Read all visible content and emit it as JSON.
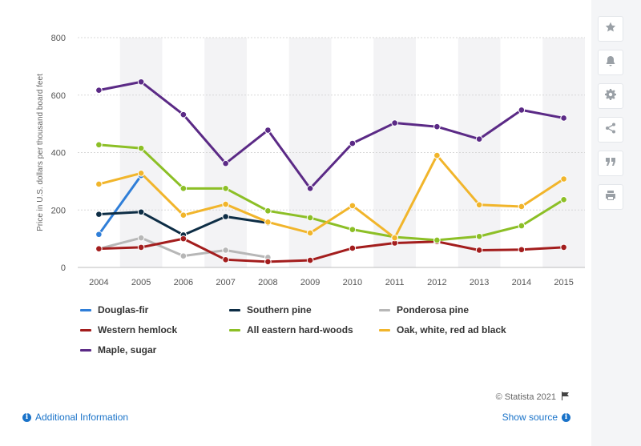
{
  "chart_data": {
    "type": "line",
    "categories": [
      "2004",
      "2005",
      "2006",
      "2007",
      "2008",
      "2009",
      "2010",
      "2011",
      "2012",
      "2013",
      "2014",
      "2015"
    ],
    "title": "",
    "xlabel": "",
    "ylabel": "Price in U.S. dollars per thousand board feet",
    "ylim": [
      0,
      800
    ],
    "yticks": [
      "0",
      "200",
      "400",
      "600",
      "800"
    ],
    "grid": true,
    "legend_position": "bottom",
    "series": [
      {
        "name": "Douglas-fir",
        "color": "#2f7ed8",
        "values": [
          115,
          320,
          null,
          null,
          null,
          null,
          null,
          null,
          null,
          null,
          null,
          null
        ]
      },
      {
        "name": "Southern pine",
        "color": "#0d2d45",
        "values": [
          185,
          193,
          113,
          177,
          155,
          null,
          null,
          null,
          null,
          null,
          null,
          null
        ]
      },
      {
        "name": "Ponderosa pine",
        "color": "#b7b7b7",
        "values": [
          65,
          103,
          40,
          60,
          35,
          null,
          null,
          null,
          null,
          null,
          null,
          null
        ]
      },
      {
        "name": "Western hemlock",
        "color": "#a31d1d",
        "values": [
          65,
          70,
          100,
          27,
          20,
          25,
          67,
          85,
          90,
          60,
          62,
          70
        ]
      },
      {
        "name": "All eastern hard-woods",
        "color": "#8cbf26",
        "values": [
          427,
          415,
          275,
          275,
          197,
          173,
          132,
          106,
          95,
          108,
          145,
          236
        ]
      },
      {
        "name": "Oak, white, red ad black",
        "color": "#f1b52b",
        "values": [
          290,
          328,
          182,
          220,
          158,
          120,
          215,
          103,
          390,
          218,
          212,
          308
        ]
      },
      {
        "name": "Maple, sugar",
        "color": "#5b2a86",
        "values": [
          617,
          646,
          532,
          362,
          478,
          275,
          432,
          503,
          490,
          447,
          548,
          520
        ]
      }
    ]
  },
  "sidebar": {
    "buttons": [
      {
        "icon": "star-icon"
      },
      {
        "icon": "bell-icon"
      },
      {
        "icon": "gear-icon"
      },
      {
        "icon": "share-icon"
      },
      {
        "icon": "quote-icon"
      },
      {
        "icon": "print-icon"
      }
    ]
  },
  "footer": {
    "credit": "© Statista 2021",
    "additional_info": "Additional Information",
    "show_source": "Show source"
  }
}
